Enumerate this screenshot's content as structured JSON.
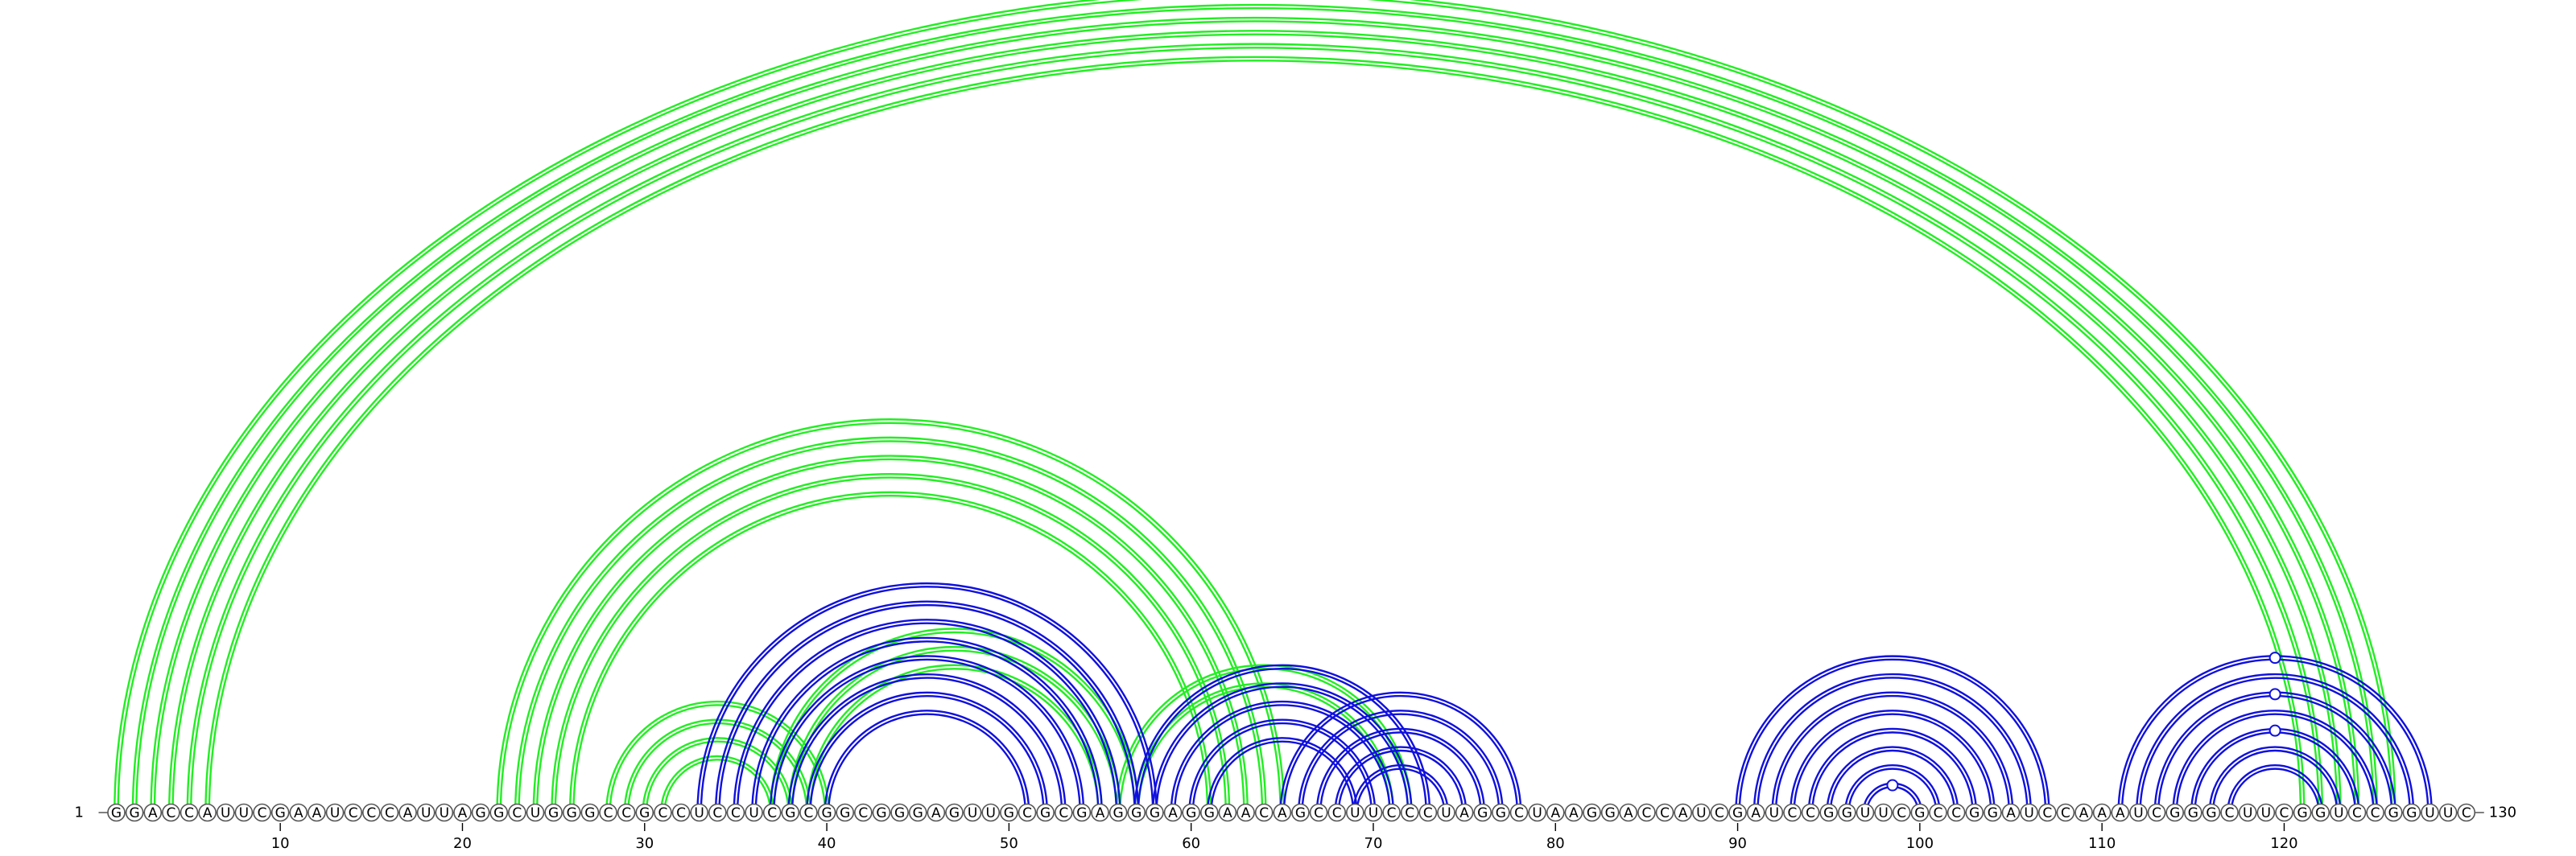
{
  "sequence": "GGACCAUUCGAAUCCCAUUAGGCUGGGCCGCCUCCUCGCGGCGGGAGUUGCGCGAGGGAGGAACAGCCUUCCCUAGGCUAAGGACCAUCGAUCCGGUUCGCCGGAUCCAAAUCGGGCUUCGGUCCGGUUC",
  "start_label": "1",
  "end_label": "130",
  "ticks": [
    10,
    20,
    30,
    40,
    50,
    60,
    70,
    80,
    90,
    100,
    110,
    120
  ],
  "colors": {
    "green": "#22ee22",
    "blue": "#1010dd",
    "circle_stroke": "#555555"
  },
  "pairs": {
    "green": [
      [
        1,
        126
      ],
      [
        2,
        125
      ],
      [
        3,
        124
      ],
      [
        4,
        123
      ],
      [
        5,
        122
      ],
      [
        6,
        121
      ],
      [
        22,
        65
      ],
      [
        23,
        64
      ],
      [
        24,
        63
      ],
      [
        25,
        62
      ],
      [
        26,
        61
      ],
      [
        28,
        40
      ],
      [
        29,
        39
      ],
      [
        30,
        38
      ],
      [
        31,
        37
      ],
      [
        56,
        72
      ],
      [
        57,
        71
      ],
      [
        37,
        57
      ],
      [
        38,
        56
      ],
      [
        39,
        55
      ]
    ],
    "blue": [
      [
        33,
        58
      ],
      [
        34,
        57
      ],
      [
        35,
        56
      ],
      [
        36,
        55
      ],
      [
        37,
        54
      ],
      [
        38,
        53
      ],
      [
        39,
        52
      ],
      [
        40,
        51
      ],
      [
        57,
        73
      ],
      [
        58,
        72
      ],
      [
        59,
        71
      ],
      [
        60,
        70
      ],
      [
        61,
        69
      ],
      [
        65,
        78
      ],
      [
        66,
        77
      ],
      [
        67,
        76
      ],
      [
        68,
        75
      ],
      [
        69,
        74
      ],
      [
        90,
        107
      ],
      [
        91,
        106
      ],
      [
        92,
        105
      ],
      [
        93,
        104
      ],
      [
        94,
        103
      ],
      [
        95,
        102
      ],
      [
        96,
        101
      ],
      [
        97,
        100
      ],
      [
        111,
        128
      ],
      [
        112,
        127
      ],
      [
        113,
        126
      ],
      [
        114,
        125
      ],
      [
        115,
        124
      ],
      [
        116,
        123
      ],
      [
        117,
        122
      ]
    ]
  },
  "markers": [
    {
      "color": "green",
      "pair": [
        1,
        126
      ]
    },
    {
      "color": "blue",
      "pair": [
        97,
        100
      ]
    },
    {
      "color": "blue",
      "pair": [
        111,
        128
      ]
    },
    {
      "color": "blue",
      "pair": [
        113,
        126
      ]
    },
    {
      "color": "blue",
      "pair": [
        115,
        124
      ]
    }
  ]
}
